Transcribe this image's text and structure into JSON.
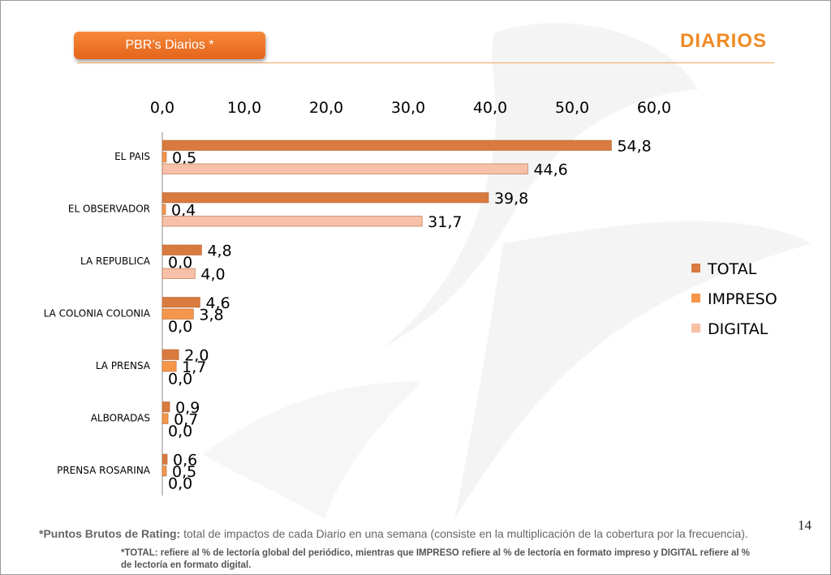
{
  "header": {
    "section_button": "PBR’s Diarios  *",
    "title": "DIARIOS"
  },
  "page_number": "14",
  "footnotes": {
    "main_bold": "*Puntos Brutos de Rating:",
    "main_text": " total de impactos de cada Diario en una semana (consiste en la multiplicación de la cobertura por la frecuencia).",
    "secondary": "*TOTAL: refiere al % de lectoría global del periódico, mientras que IMPRESO refiere al % de lectoría en formato impreso y DIGITAL refiere al % de lectoría en formato digital."
  },
  "colors": {
    "accent": "#f08a24",
    "total": "#d97a3f",
    "impreso": "#f5964a",
    "digital": "#f7c0a8"
  },
  "chart_data": {
    "type": "bar",
    "orientation": "horizontal",
    "categories": [
      "EL PAIS",
      "EL OBSERVADOR",
      "LA REPUBLICA",
      "LA COLONIA COLONIA",
      "LA PRENSA",
      "ALBORADAS",
      "PRENSA ROSARINA"
    ],
    "series": [
      {
        "name": "TOTAL",
        "color": "#d97a3f",
        "values": [
          54.8,
          39.8,
          4.8,
          4.6,
          2.0,
          0.9,
          0.6
        ]
      },
      {
        "name": "IMPRESO",
        "color": "#f5964a",
        "values": [
          0.5,
          0.4,
          0.0,
          3.8,
          1.7,
          0.7,
          0.5
        ]
      },
      {
        "name": "DIGITAL",
        "color": "#f7c0a8",
        "values": [
          44.6,
          31.7,
          4.0,
          0.0,
          0.0,
          0.0,
          0.0
        ]
      }
    ],
    "value_labels": [
      [
        "54,8",
        "39,8",
        "4,8",
        "4,6",
        "2,0",
        "0,9",
        "0,6"
      ],
      [
        "0,5",
        "0,4",
        "0,0",
        "3,8",
        "1,7",
        "0,7",
        "0,5"
      ],
      [
        "44,6",
        "31,7",
        "4,0",
        "0,0",
        "0,0",
        "0,0",
        "0,0"
      ]
    ],
    "xticks": [
      "0,0",
      "10,0",
      "20,0",
      "30,0",
      "40,0",
      "50,0",
      "60,0"
    ],
    "xlim": [
      0,
      60
    ],
    "x_axis_position": "top",
    "legend_position": "right",
    "grid": false
  }
}
